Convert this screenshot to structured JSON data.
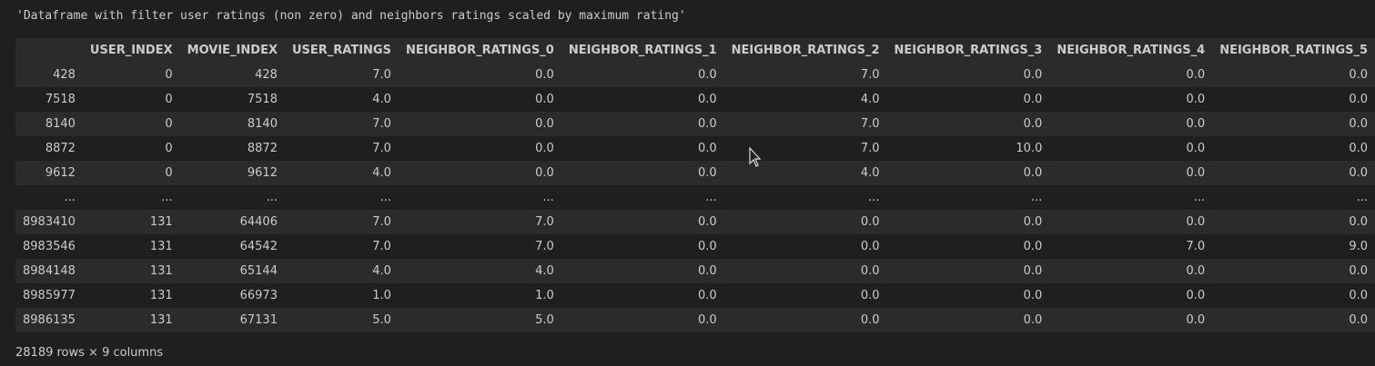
{
  "output_text": "'Dataframe with filter user ratings (non zero) and neighbors ratings scaled by maximum rating'",
  "table": {
    "columns": [
      "",
      "USER_INDEX",
      "MOVIE_INDEX",
      "USER_RATINGS",
      "NEIGHBOR_RATINGS_0",
      "NEIGHBOR_RATINGS_1",
      "NEIGHBOR_RATINGS_2",
      "NEIGHBOR_RATINGS_3",
      "NEIGHBOR_RATINGS_4",
      "NEIGHBOR_RATINGS_5"
    ],
    "rows": [
      [
        "428",
        "0",
        "428",
        "7.0",
        "0.0",
        "0.0",
        "7.0",
        "0.0",
        "0.0",
        "0.0"
      ],
      [
        "7518",
        "0",
        "7518",
        "4.0",
        "0.0",
        "0.0",
        "4.0",
        "0.0",
        "0.0",
        "0.0"
      ],
      [
        "8140",
        "0",
        "8140",
        "7.0",
        "0.0",
        "0.0",
        "7.0",
        "0.0",
        "0.0",
        "0.0"
      ],
      [
        "8872",
        "0",
        "8872",
        "7.0",
        "0.0",
        "0.0",
        "7.0",
        "10.0",
        "0.0",
        "0.0"
      ],
      [
        "9612",
        "0",
        "9612",
        "4.0",
        "0.0",
        "0.0",
        "4.0",
        "0.0",
        "0.0",
        "0.0"
      ],
      [
        "...",
        "...",
        "...",
        "...",
        "...",
        "...",
        "...",
        "...",
        "...",
        "..."
      ],
      [
        "8983410",
        "131",
        "64406",
        "7.0",
        "7.0",
        "0.0",
        "0.0",
        "0.0",
        "0.0",
        "0.0"
      ],
      [
        "8983546",
        "131",
        "64542",
        "7.0",
        "7.0",
        "0.0",
        "0.0",
        "0.0",
        "7.0",
        "9.0"
      ],
      [
        "8984148",
        "131",
        "65144",
        "4.0",
        "4.0",
        "0.0",
        "0.0",
        "0.0",
        "0.0",
        "0.0"
      ],
      [
        "8985977",
        "131",
        "66973",
        "1.0",
        "1.0",
        "0.0",
        "0.0",
        "0.0",
        "0.0",
        "0.0"
      ],
      [
        "8986135",
        "131",
        "67131",
        "5.0",
        "5.0",
        "0.0",
        "0.0",
        "0.0",
        "0.0",
        "0.0"
      ]
    ]
  },
  "shape_info": "28189 rows × 9 columns",
  "cursor_icon": "mouse-pointer-icon"
}
